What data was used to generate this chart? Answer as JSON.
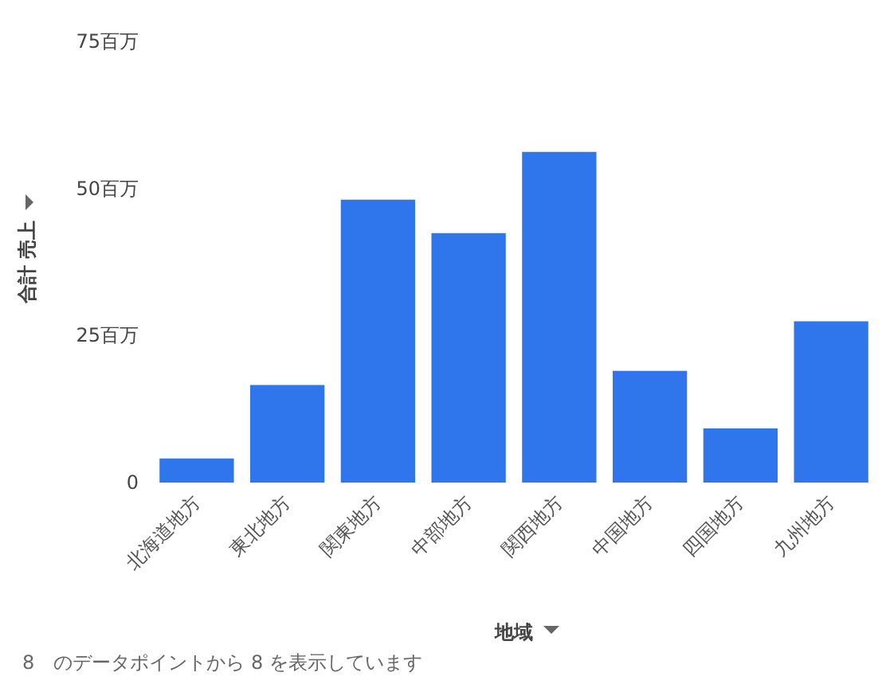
{
  "chart_data": {
    "type": "bar",
    "xlabel": "地域",
    "ylabel": "合計 売上",
    "categories": [
      "北海道地方",
      "東北地方",
      "関東地方",
      "中部地方",
      "関西地方",
      "中国地方",
      "四国地方",
      "九州地方"
    ],
    "values": [
      4.1,
      16.6,
      48.1,
      42.4,
      56.2,
      19.0,
      9.2,
      27.4
    ],
    "color": "#2f76ed",
    "ylim": [
      0,
      75
    ],
    "yticks": [
      0,
      {
        "value": 25,
        "label": "25百万"
      },
      {
        "value": 50,
        "label": "50百万"
      },
      {
        "value": 75,
        "label": "75百万"
      }
    ],
    "grid": false,
    "annotations": [
      "8　のデータポイントから 8 を表示しています"
    ]
  }
}
